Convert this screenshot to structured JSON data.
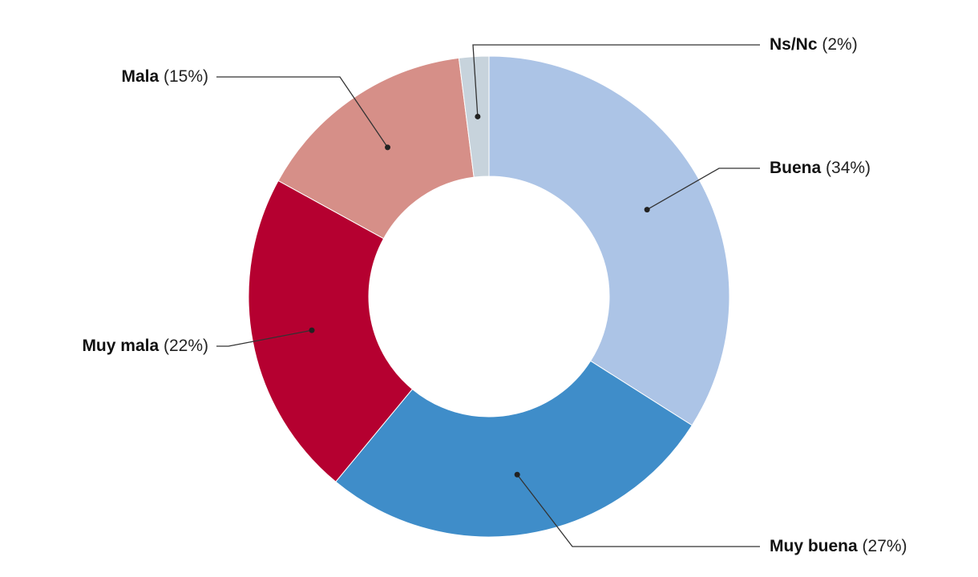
{
  "chart_data": {
    "type": "pie",
    "variant": "donut",
    "title": "",
    "legend": "none",
    "slices": [
      {
        "label": "Buena",
        "value": 34,
        "pct_text": "(34%)",
        "color": "#acc4e6"
      },
      {
        "label": "Muy buena",
        "value": 27,
        "pct_text": "(27%)",
        "color": "#3f8dc9"
      },
      {
        "label": "Muy mala",
        "value": 22,
        "pct_text": "(22%)",
        "color": "#b50030"
      },
      {
        "label": "Mala",
        "value": 15,
        "pct_text": "(15%)",
        "color": "#d68f88"
      },
      {
        "label": "Ns/Nc",
        "value": 2,
        "pct_text": "(2%)",
        "color": "#c7d3dc"
      }
    ]
  }
}
